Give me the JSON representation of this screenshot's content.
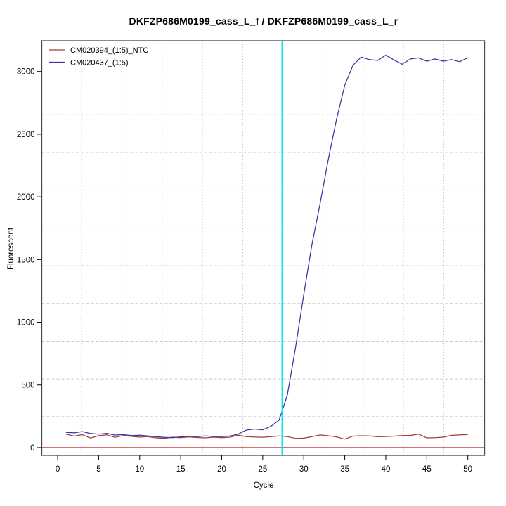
{
  "figure": {
    "background": "#ffffff",
    "frame_color": "#4a4a4a"
  },
  "chart_data": {
    "type": "line",
    "title": "DKFZP686M0199_cass_L_f / DKFZP686M0199_cass_L_r",
    "xlabel": "Cycle",
    "ylabel": "Fluorescent",
    "x_ticks": [
      0,
      5,
      10,
      15,
      20,
      25,
      30,
      35,
      40,
      45,
      50
    ],
    "y_ticks": [
      0,
      500,
      1000,
      1500,
      2000,
      2500,
      3000
    ],
    "xlim": [
      -1.93,
      52.04
    ],
    "ylim": [
      -62,
      3245
    ],
    "grid": {
      "x_lines": [
        2.93,
        7.83,
        12.73,
        17.63,
        22.53,
        27.43,
        32.33,
        37.23,
        42.13,
        47.03
      ],
      "y_lines": [
        247,
        548,
        849,
        1150,
        1451,
        1752,
        2053,
        2354,
        2655,
        2956
      ],
      "x_color": "#8f8f8f",
      "y_color": "#c8c8c8"
    },
    "baseline": {
      "y": 0,
      "color": "#b22222"
    },
    "threshold_cycle": {
      "x": 27.35,
      "color": "#00e5ee"
    },
    "legend": {
      "position": "top-left"
    },
    "cycles": [
      1,
      2,
      3,
      4,
      5,
      6,
      7,
      8,
      9,
      10,
      11,
      12,
      13,
      14,
      15,
      16,
      17,
      18,
      19,
      20,
      21,
      22,
      23,
      24,
      25,
      26,
      27,
      28,
      29,
      30,
      31,
      32,
      33,
      34,
      35,
      36,
      37,
      38,
      39,
      40,
      41,
      42,
      43,
      44,
      45,
      46,
      47,
      48,
      49,
      50
    ],
    "series": [
      {
        "name": "CM020394_(1:5)_NTC",
        "color": "#a33c3c",
        "values": [
          108,
          92,
          104,
          77,
          95,
          102,
          82,
          96,
          90,
          84,
          88,
          78,
          75,
          84,
          79,
          86,
          81,
          78,
          84,
          80,
          84,
          100,
          88,
          85,
          83,
          88,
          94,
          88,
          74,
          76,
          88,
          101,
          95,
          86,
          68,
          92,
          95,
          94,
          87,
          89,
          92,
          96,
          98,
          108,
          78,
          80,
          84,
          98,
          102,
          104
        ]
      },
      {
        "name": "CM020437_(1:5)",
        "color": "#3535a5",
        "values": [
          122,
          118,
          128,
          113,
          108,
          114,
          100,
          104,
          96,
          99,
          93,
          87,
          82,
          80,
          86,
          92,
          88,
          94,
          90,
          88,
          93,
          108,
          140,
          148,
          142,
          170,
          220,
          420,
          800,
          1220,
          1620,
          1950,
          2300,
          2620,
          2890,
          3050,
          3115,
          3095,
          3088,
          3130,
          3092,
          3058,
          3100,
          3108,
          3082,
          3100,
          3082,
          3095,
          3078,
          3110
        ]
      }
    ]
  }
}
